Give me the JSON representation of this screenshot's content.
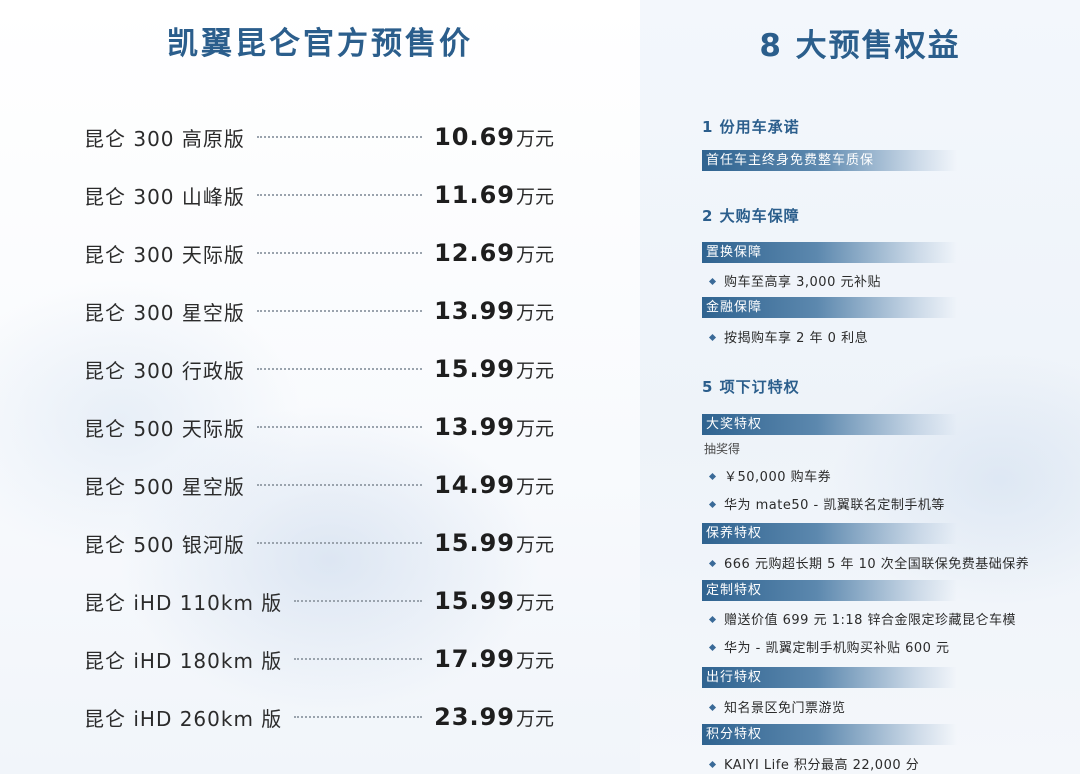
{
  "left": {
    "title": "凯翼昆仑官方预售价",
    "prices": [
      {
        "model": "昆仑 300 高原版",
        "price": "10.69",
        "unit": "万元"
      },
      {
        "model": "昆仑 300 山峰版",
        "price": "11.69",
        "unit": "万元"
      },
      {
        "model": "昆仑 300 天际版",
        "price": "12.69",
        "unit": "万元"
      },
      {
        "model": "昆仑 300 星空版",
        "price": "13.99",
        "unit": "万元"
      },
      {
        "model": "昆仑 300 行政版",
        "price": "15.99",
        "unit": "万元"
      },
      {
        "model": "昆仑 500 天际版",
        "price": "13.99",
        "unit": "万元"
      },
      {
        "model": "昆仑 500 星空版",
        "price": "14.99",
        "unit": "万元"
      },
      {
        "model": "昆仑 500 银河版",
        "price": "15.99",
        "unit": "万元"
      },
      {
        "model": "昆仑 iHD 110km 版",
        "price": "15.99",
        "unit": "万元"
      },
      {
        "model": "昆仑 iHD 180km 版",
        "price": "17.99",
        "unit": "万元"
      },
      {
        "model": "昆仑 iHD 260km 版",
        "price": "23.99",
        "unit": "万元"
      }
    ]
  },
  "right": {
    "title": "8 大预售权益",
    "section1": {
      "head": "1 份用车承诺",
      "tag": "首任车主终身免费整车质保"
    },
    "section2": {
      "head": "2 大购车保障",
      "tag1": "置换保障",
      "item1": "购车至高享 3,000 元补贴",
      "tag2": "金融保障",
      "item2": "按揭购车享 2 年 0 利息"
    },
    "section3": {
      "head": "5 项下订特权",
      "tag1": "大奖特权",
      "sub1": "抽奖得",
      "item1a": "￥50,000 购车券",
      "item1b": "华为 mate50 - 凯翼联名定制手机等",
      "tag2": "保养特权",
      "item2": "666 元购超长期 5 年 10 次全国联保免费基础保养",
      "tag3": "定制特权",
      "item3a": "赠送价值 699 元 1:18 锌合金限定珍藏昆仑车模",
      "item3b": "华为 - 凯翼定制手机购买补贴 600 元",
      "tag4": "出行特权",
      "item4": "知名景区免门票游览",
      "tag5": "积分特权",
      "item5": "KAIYI Life 积分最高 22,000 分"
    }
  },
  "colors": {
    "accent": "#2b5e8c",
    "tag_bg": "#2f6390"
  }
}
